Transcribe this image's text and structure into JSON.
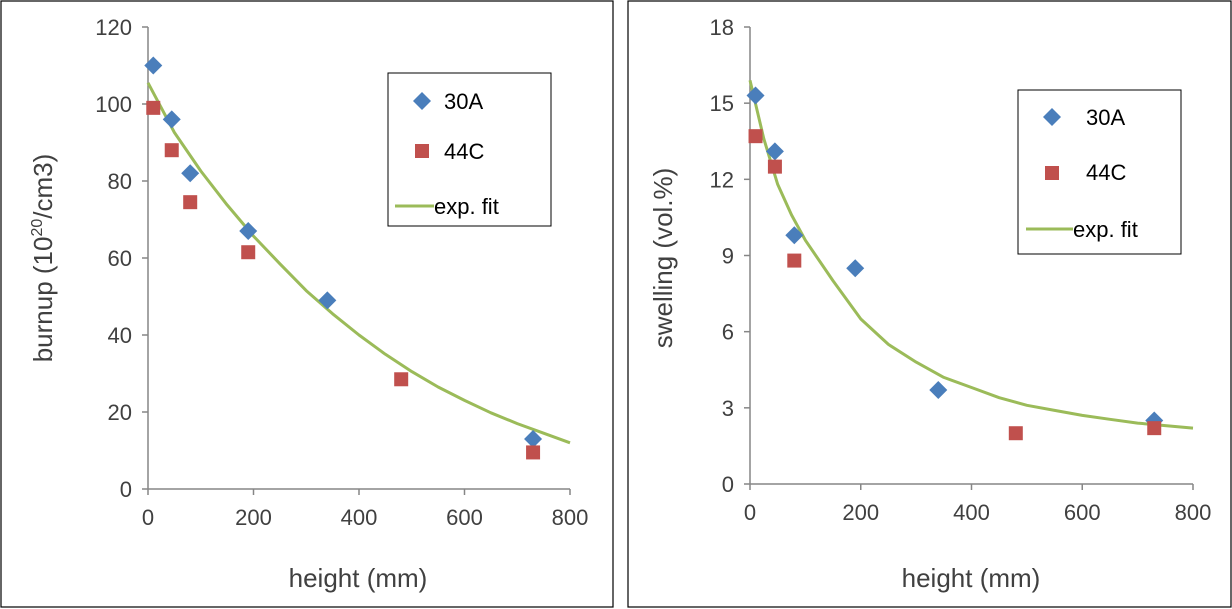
{
  "chart_data": [
    {
      "type": "scatter",
      "xlabel": "height (mm)",
      "ylabel_parts": {
        "before": "burnup (10",
        "sup": "20",
        "after": "/cm3)"
      },
      "xlim": [
        0,
        800
      ],
      "ylim": [
        0,
        120
      ],
      "xticks": [
        "0",
        "200",
        "400",
        "600",
        "800"
      ],
      "yticks": [
        "0",
        "20",
        "40",
        "60",
        "80",
        "100",
        "120"
      ],
      "grid": false,
      "legend": "top-right",
      "series": [
        {
          "name": "30A",
          "marker": "diamond",
          "color": "#4a7ebb",
          "points": [
            [
              10,
              110
            ],
            [
              45,
              96
            ],
            [
              80,
              82
            ],
            [
              190,
              67
            ],
            [
              340,
              49
            ],
            [
              730,
              13
            ]
          ]
        },
        {
          "name": "44C",
          "marker": "square",
          "color": "#c0504d",
          "points": [
            [
              10,
              99
            ],
            [
              45,
              88
            ],
            [
              80,
              74.5
            ],
            [
              190,
              61.5
            ],
            [
              480,
              28.5
            ],
            [
              730,
              9.5
            ]
          ]
        },
        {
          "name": "exp. fit",
          "marker": "line",
          "color": "#9bbb59",
          "points": [
            [
              0,
              105.5
            ],
            [
              50,
              92.6
            ],
            [
              100,
              82.6
            ],
            [
              150,
              73.8
            ],
            [
              200,
              65.7
            ],
            [
              250,
              58.5
            ],
            [
              300,
              51.5
            ],
            [
              350,
              45.5
            ],
            [
              400,
              40
            ],
            [
              450,
              35
            ],
            [
              500,
              30.5
            ],
            [
              550,
              26.5
            ],
            [
              600,
              23
            ],
            [
              650,
              19.8
            ],
            [
              700,
              17
            ],
            [
              750,
              14.5
            ],
            [
              800,
              12
            ]
          ]
        }
      ]
    },
    {
      "type": "scatter",
      "xlabel": "height (mm)",
      "ylabel": "swelling (vol.%)",
      "xlim": [
        0,
        800
      ],
      "ylim": [
        0,
        18
      ],
      "xticks": [
        "0",
        "200",
        "400",
        "600",
        "800"
      ],
      "yticks": [
        "0",
        "3",
        "6",
        "9",
        "12",
        "15",
        "18"
      ],
      "grid": false,
      "legend": "top-right",
      "series": [
        {
          "name": "30A",
          "marker": "diamond",
          "color": "#4a7ebb",
          "points": [
            [
              10,
              15.3
            ],
            [
              45,
              13.1
            ],
            [
              80,
              9.8
            ],
            [
              190,
              8.5
            ],
            [
              340,
              3.7
            ],
            [
              730,
              2.5
            ]
          ]
        },
        {
          "name": "44C",
          "marker": "square",
          "color": "#c0504d",
          "points": [
            [
              10,
              13.7
            ],
            [
              45,
              12.5
            ],
            [
              80,
              8.8
            ],
            [
              480,
              2
            ],
            [
              730,
              2.2
            ]
          ]
        },
        {
          "name": "exp. fit",
          "marker": "line",
          "color": "#9bbb59",
          "points": [
            [
              0,
              15.9
            ],
            [
              25,
              13.6
            ],
            [
              50,
              11.8
            ],
            [
              75,
              10.6
            ],
            [
              100,
              9.6
            ],
            [
              150,
              8
            ],
            [
              200,
              6.5
            ],
            [
              250,
              5.5
            ],
            [
              300,
              4.8
            ],
            [
              350,
              4.2
            ],
            [
              400,
              3.8
            ],
            [
              450,
              3.4
            ],
            [
              500,
              3.1
            ],
            [
              550,
              2.9
            ],
            [
              600,
              2.7
            ],
            [
              650,
              2.55
            ],
            [
              700,
              2.4
            ],
            [
              750,
              2.3
            ],
            [
              800,
              2.2
            ]
          ]
        }
      ]
    }
  ]
}
